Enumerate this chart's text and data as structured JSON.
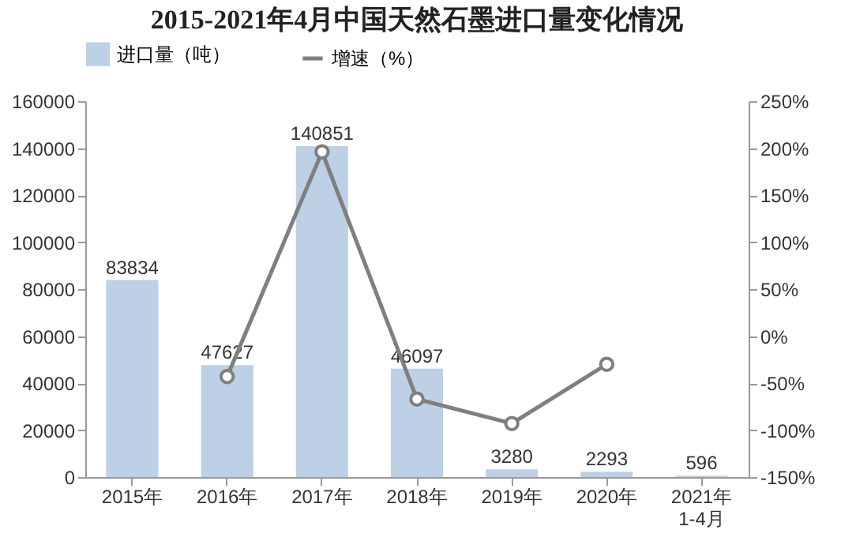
{
  "chart_data": {
    "type": "bar",
    "title": "2015-2021年4月中国天然石墨进口量变化情况",
    "categories": [
      "2015年",
      "2016年",
      "2017年",
      "2018年",
      "2019年",
      "2020年",
      "2021年\n1-4月"
    ],
    "series": [
      {
        "name": "进口量（吨）",
        "color": "#bdd0e6",
        "values": [
          83834,
          47627,
          140851,
          46097,
          3280,
          2293,
          596
        ],
        "value_labels": [
          "83834",
          "47627",
          "140851",
          "46097",
          "3280",
          "2293",
          "596"
        ]
      },
      {
        "name": "增速（%）",
        "type": "line",
        "axis": "y2",
        "color": "#7f7f7f",
        "marker": "circle",
        "values": [
          null,
          -43,
          196,
          -67,
          -93,
          -30,
          null
        ]
      }
    ],
    "ylim": [
      0,
      160000
    ],
    "yticks": [
      0,
      20000,
      40000,
      60000,
      80000,
      100000,
      120000,
      140000,
      160000
    ],
    "y2lim": [
      -150,
      250
    ],
    "y2ticks": [
      {
        "value": 250,
        "label": "250%"
      },
      {
        "value": 200,
        "label": "200%"
      },
      {
        "value": 150,
        "label": "150%"
      },
      {
        "value": 100,
        "label": "100%"
      },
      {
        "value": 50,
        "label": "50%"
      },
      {
        "value": 0,
        "label": "0%"
      },
      {
        "value": -50,
        "label": "-50%"
      },
      {
        "value": -100,
        "label": "-100%"
      },
      {
        "value": -150,
        "label": "-150%"
      }
    ],
    "legend": "top",
    "grid": false
  }
}
